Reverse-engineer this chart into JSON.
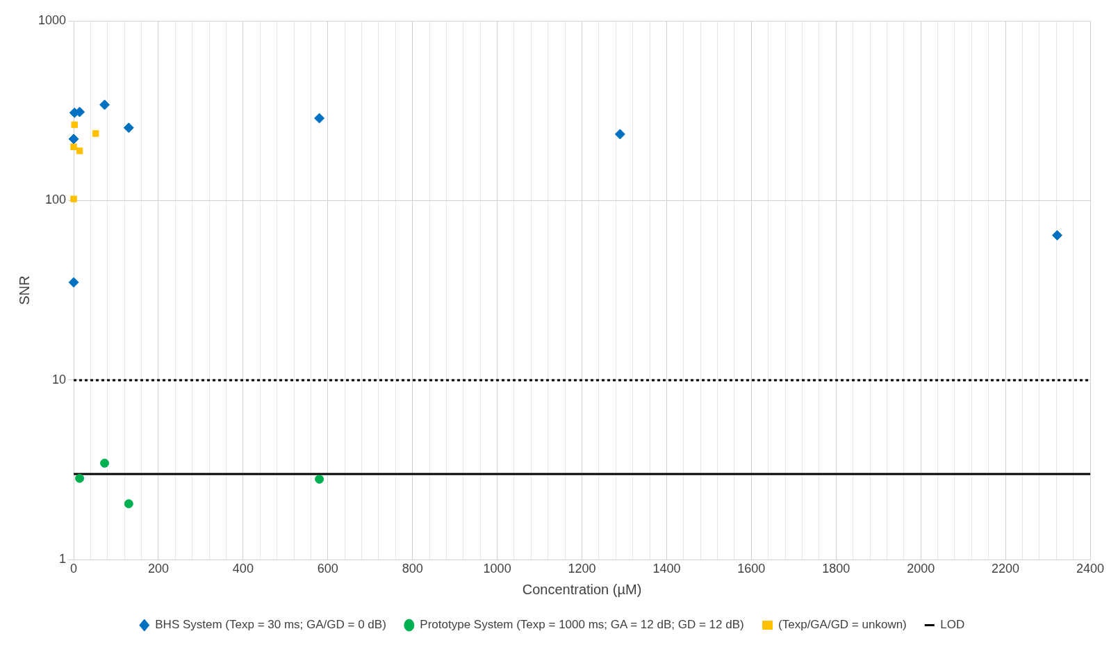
{
  "chart_data": {
    "type": "scatter",
    "xlabel": "Concentration (µM)",
    "ylabel": "SNR",
    "log": "y",
    "grid": true,
    "legend": "bottom",
    "xlim": [
      0,
      2400
    ],
    "ylim": [
      1,
      1000
    ],
    "xticks": [
      0,
      {
        "value": 40,
        "label": null
      },
      {
        "value": 80,
        "label": null
      },
      {
        "value": 120,
        "label": null
      },
      {
        "value": 160,
        "label": null
      },
      200,
      {
        "value": 240,
        "label": null
      },
      {
        "value": 280,
        "label": null
      },
      {
        "value": 320,
        "label": null
      },
      {
        "value": 360,
        "label": null
      },
      400,
      {
        "value": 440,
        "label": null
      },
      {
        "value": 480,
        "label": null
      },
      {
        "value": 520,
        "label": null
      },
      {
        "value": 560,
        "label": null
      },
      600,
      {
        "value": 640,
        "label": null
      },
      {
        "value": 680,
        "label": null
      },
      {
        "value": 720,
        "label": null
      },
      {
        "value": 760,
        "label": null
      },
      800,
      {
        "value": 840,
        "label": null
      },
      {
        "value": 880,
        "label": null
      },
      {
        "value": 920,
        "label": null
      },
      {
        "value": 960,
        "label": null
      },
      1000,
      {
        "value": 1040,
        "label": null
      },
      {
        "value": 1080,
        "label": null
      },
      {
        "value": 1120,
        "label": null
      },
      {
        "value": 1160,
        "label": null
      },
      1200,
      {
        "value": 1240,
        "label": null
      },
      {
        "value": 1280,
        "label": null
      },
      {
        "value": 1320,
        "label": null
      },
      {
        "value": 1360,
        "label": null
      },
      1400,
      {
        "value": 1440,
        "label": null
      },
      {
        "value": 1480,
        "label": null
      },
      {
        "value": 1520,
        "label": null
      },
      {
        "value": 1560,
        "label": null
      },
      1600,
      {
        "value": 1640,
        "label": null
      },
      {
        "value": 1680,
        "label": null
      },
      {
        "value": 1720,
        "label": null
      },
      {
        "value": 1760,
        "label": null
      },
      1800,
      {
        "value": 1840,
        "label": null
      },
      {
        "value": 1880,
        "label": null
      },
      {
        "value": 1920,
        "label": null
      },
      {
        "value": 1960,
        "label": null
      },
      2000,
      {
        "value": 2040,
        "label": null
      },
      {
        "value": 2080,
        "label": null
      },
      {
        "value": 2120,
        "label": null
      },
      {
        "value": 2160,
        "label": null
      },
      2200,
      {
        "value": 2240,
        "label": null
      },
      {
        "value": 2280,
        "label": null
      },
      {
        "value": 2320,
        "label": null
      },
      {
        "value": 2360,
        "label": null
      },
      2400
    ],
    "yticks": [
      1,
      10,
      100,
      1000
    ],
    "ref_lines": [
      {
        "axis": "y",
        "value": 10,
        "color": "#000000",
        "line_style": "dotted"
      }
    ],
    "series": [
      {
        "name": "BHS System (Texp = 30 ms; GA/GD = 0 dB)",
        "color": "#0070c0",
        "marker": "diamond",
        "x": [
          0,
          0,
          2,
          14,
          73,
          130,
          580,
          1290,
          2322
        ],
        "values": [
          35,
          220,
          308,
          311,
          341,
          254,
          287,
          234,
          64
        ]
      },
      {
        "name": "Prototype System (Texp = 1000 ms; GA = 12 dB; GD = 12 dB)",
        "color": "#00b050",
        "marker": "circle",
        "x": [
          14,
          73,
          130,
          580
        ],
        "values": [
          2.84,
          3.45,
          2.05,
          2.81
        ]
      },
      {
        "name": "(Texp/GA/GD = unkown)",
        "color": "#ffc000",
        "marker": "square",
        "x": [
          2,
          0,
          14,
          52,
          0
        ],
        "values": [
          264,
          199,
          189,
          236,
          102
        ]
      },
      {
        "name": "LOD",
        "type": "line",
        "color": "#000000",
        "marker": "none",
        "line_style": "solid",
        "x": [
          0,
          2400
        ],
        "values": [
          3,
          3
        ]
      }
    ]
  }
}
